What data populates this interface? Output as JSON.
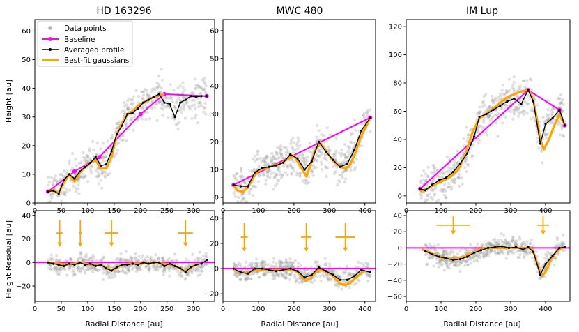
{
  "figure": {
    "ylabel_top": "Height [au]",
    "ylabel_bottom": "Height Residual [au]",
    "xlabel": "Radial Distance [au]",
    "legend": [
      {
        "label": "Data points",
        "kind": "scatter",
        "color": "#b0b0b0"
      },
      {
        "label": "Baseline",
        "kind": "line-marker",
        "color": "#ff00ff"
      },
      {
        "label": "Averaged profile",
        "kind": "line-marker",
        "color": "#000000"
      },
      {
        "label": "Best-fit gaussians",
        "kind": "line",
        "color": "#ffa500"
      }
    ]
  },
  "chart_data": [
    {
      "type": "line",
      "title": "HD 163296",
      "xlim": [
        0,
        340
      ],
      "top": {
        "ylim": [
          0,
          64
        ],
        "xticks": [
          0,
          50,
          100,
          150,
          200,
          250,
          300
        ],
        "yticks": [
          0,
          10,
          20,
          30,
          40,
          50,
          60
        ],
        "baseline": {
          "x": [
            25,
            75,
            122,
            200,
            245,
            325
          ],
          "y": [
            4,
            11,
            16,
            31,
            38,
            37.3
          ]
        },
        "profile": {
          "x": [
            25,
            35,
            45,
            55,
            65,
            75,
            85,
            95,
            105,
            115,
            125,
            135,
            145,
            155,
            165,
            175,
            185,
            195,
            205,
            215,
            225,
            235,
            245,
            255,
            265,
            275,
            285,
            295,
            305,
            315,
            325
          ],
          "y": [
            4,
            4.3,
            3.2,
            8,
            10,
            8.5,
            11,
            12.5,
            14,
            16,
            13,
            13.5,
            18,
            24,
            27,
            31,
            31.5,
            33,
            35,
            36,
            37,
            38,
            35,
            34.5,
            30,
            35,
            36,
            37.3,
            37,
            37.3,
            37.3
          ]
        },
        "fit": {
          "x": [
            25,
            35,
            45,
            55,
            65,
            75,
            85,
            95,
            105,
            115,
            125,
            135,
            145,
            155,
            165,
            175,
            185,
            195,
            205,
            215,
            225,
            235,
            245
          ],
          "y": [
            4,
            4.5,
            3.5,
            7,
            10,
            7.5,
            10.5,
            12.5,
            14,
            15,
            12,
            12,
            16,
            24,
            28,
            31,
            32,
            34,
            35,
            36,
            37,
            37.5,
            38
          ]
        }
      },
      "bottom": {
        "ylim": [
          -33,
          44
        ],
        "xticks": [
          0,
          50,
          100,
          150,
          200,
          250,
          300
        ],
        "yticks": [
          -20,
          0,
          20,
          40
        ],
        "baseline_y": 0,
        "residual": {
          "x": [
            25,
            35,
            45,
            55,
            65,
            75,
            85,
            95,
            105,
            115,
            125,
            135,
            145,
            155,
            165,
            175,
            185,
            195,
            205,
            215,
            225,
            235,
            245,
            255,
            265,
            275,
            285,
            295,
            305,
            315,
            325
          ],
          "y": [
            0,
            -1,
            -2,
            -3,
            -1,
            -2,
            0,
            -2,
            -1,
            -3,
            -2,
            -5,
            -7,
            -4,
            -2,
            -2,
            -1,
            -2,
            0,
            -1,
            0,
            0,
            -3,
            -1,
            -3,
            -5,
            -8,
            -4,
            -2,
            -1,
            2
          ]
        },
        "fit": {
          "x": [
            25,
            45,
            65,
            85,
            105,
            125,
            135,
            145,
            160,
            180,
            200,
            220,
            240,
            260,
            275,
            285,
            295,
            310
          ],
          "y": [
            0,
            -1,
            -2,
            0,
            -2,
            -2,
            -4,
            -7,
            -3,
            -1,
            -1,
            0,
            -1,
            -2,
            -5,
            -8,
            -4,
            -1
          ]
        },
        "markers": [
          {
            "x": 47,
            "y": 25,
            "xerr": 6,
            "yerr": 11
          },
          {
            "x": 86,
            "y": 25,
            "xerr": 3,
            "yerr": 11
          },
          {
            "x": 145,
            "y": 25,
            "xerr": 13,
            "yerr": 11
          },
          {
            "x": 285,
            "y": 25,
            "xerr": 14,
            "yerr": 11
          }
        ]
      }
    },
    {
      "type": "line",
      "title": "MWC 480",
      "xlim": [
        0,
        430
      ],
      "top": {
        "ylim": [
          -2,
          64
        ],
        "xticks": [
          0,
          100,
          200,
          300,
          400
        ],
        "yticks": [
          0,
          10,
          20,
          30,
          40,
          50,
          60
        ],
        "baseline": {
          "x": [
            30,
            415
          ],
          "y": [
            4.5,
            28.7
          ]
        },
        "profile": {
          "x": [
            30,
            50,
            70,
            90,
            110,
            130,
            150,
            170,
            190,
            210,
            230,
            250,
            270,
            290,
            310,
            330,
            350,
            370,
            390,
            415
          ],
          "y": [
            4.5,
            4,
            4,
            9,
            10.5,
            11,
            11.5,
            12.5,
            15.5,
            14,
            10,
            13,
            20,
            16.5,
            13.5,
            11,
            12,
            17,
            24,
            28.7
          ]
        },
        "fit": {
          "x": [
            30,
            40,
            55,
            70,
            85,
            100,
            130,
            160,
            185,
            200,
            215,
            235,
            245,
            260,
            275,
            290,
            305,
            320,
            340,
            355,
            370,
            390,
            415
          ],
          "y": [
            4.5,
            2.5,
            2,
            3.5,
            7,
            9.5,
            11,
            12,
            14,
            15,
            12,
            7.5,
            11,
            17,
            19.5,
            17,
            14,
            12,
            10.5,
            11,
            15,
            22,
            28.5
          ]
        }
      },
      "bottom": {
        "ylim": [
          -26,
          46
        ],
        "xticks": [
          0,
          100,
          200,
          300,
          400
        ],
        "yticks": [
          -20,
          0,
          20,
          40
        ],
        "baseline_y": 0,
        "residual": {
          "x": [
            30,
            50,
            70,
            90,
            110,
            130,
            150,
            170,
            190,
            210,
            230,
            250,
            270,
            290,
            310,
            330,
            350,
            370,
            390,
            415
          ],
          "y": [
            0,
            -3,
            -4,
            0,
            0,
            -1,
            -2,
            -1,
            0,
            -2,
            -7,
            -5,
            1,
            -2,
            -5,
            -9,
            -9,
            -6,
            -1,
            -3
          ]
        },
        "fit": {
          "x": [
            30,
            50,
            70,
            90,
            120,
            160,
            200,
            215,
            235,
            255,
            270,
            290,
            310,
            330,
            345,
            360,
            380,
            400
          ],
          "y": [
            -1,
            -3,
            -3,
            -1,
            -1,
            -1,
            -1,
            -4,
            -10,
            -5,
            -1,
            -2,
            -6,
            -12,
            -13,
            -11,
            -6,
            -1
          ]
        },
        "markers": [
          {
            "x": 60,
            "y": 25,
            "xerr": 10,
            "yerr": 11
          },
          {
            "x": 235,
            "y": 25,
            "xerr": 15,
            "yerr": 11
          },
          {
            "x": 345,
            "y": 25,
            "xerr": 28,
            "yerr": 11
          }
        ]
      }
    },
    {
      "type": "line",
      "title": "IM Lup",
      "xlim": [
        0,
        470
      ],
      "top": {
        "ylim": [
          -5,
          125
        ],
        "xticks": [
          0,
          100,
          200,
          300,
          400
        ],
        "yticks": [
          0,
          20,
          40,
          60,
          80,
          100,
          120
        ],
        "baseline": {
          "x": [
            40,
            350,
            440,
            455
          ],
          "y": [
            5,
            75,
            61,
            50
          ]
        },
        "profile": {
          "x": [
            40,
            55,
            75,
            95,
            115,
            135,
            155,
            175,
            195,
            210,
            230,
            250,
            270,
            290,
            310,
            330,
            350,
            365,
            385,
            400,
            420,
            440,
            455
          ],
          "y": [
            5,
            4,
            8,
            11,
            13,
            17,
            23,
            30,
            42,
            56,
            58,
            61,
            64,
            67,
            69,
            65,
            75,
            67,
            37,
            51,
            55,
            61,
            50
          ]
        },
        "fit": {
          "x": [
            40,
            60,
            80,
            100,
            130,
            150,
            170,
            190,
            210,
            230,
            250,
            270,
            290,
            310,
            330,
            345,
            355,
            365,
            375,
            385,
            395,
            410,
            425,
            440,
            455
          ],
          "y": [
            3,
            5,
            8,
            10,
            14,
            19,
            30,
            45,
            55,
            58,
            62,
            66,
            70,
            72,
            74,
            75,
            74,
            68,
            55,
            40,
            33,
            40,
            50,
            58,
            50
          ]
        }
      },
      "bottom": {
        "ylim": [
          -66,
          46
        ],
        "xticks": [
          0,
          100,
          200,
          300,
          400
        ],
        "yticks": [
          -60,
          -40,
          -20,
          0,
          20,
          40
        ],
        "baseline_y": 0,
        "residual": {
          "x": [
            55,
            75,
            95,
            115,
            135,
            155,
            175,
            195,
            215,
            235,
            255,
            275,
            295,
            315,
            335,
            350,
            365,
            385,
            400,
            420,
            440,
            455
          ],
          "y": [
            -4,
            -8,
            -11,
            -13,
            -15,
            -14,
            -11,
            -6,
            -3,
            0,
            1,
            2,
            0,
            1,
            -2,
            1,
            -5,
            -33,
            -20,
            -10,
            0,
            1
          ]
        },
        "fit": {
          "x": [
            45,
            65,
            85,
            105,
            125,
            145,
            165,
            185,
            205,
            225,
            245,
            265,
            285,
            305,
            325,
            345,
            360,
            370,
            380,
            390,
            400,
            415,
            430,
            450
          ],
          "y": [
            -2,
            -5,
            -9,
            -12,
            -13,
            -13,
            -11,
            -7,
            -3,
            0,
            0,
            0,
            0,
            0,
            0,
            0,
            -1,
            -10,
            -25,
            -34,
            -30,
            -15,
            -5,
            0
          ]
        },
        "markers": [
          {
            "x": 135,
            "y": 28,
            "xerr": 48,
            "yerr": 11
          },
          {
            "x": 393,
            "y": 28,
            "xerr": 17,
            "yerr": 11
          }
        ]
      }
    }
  ]
}
